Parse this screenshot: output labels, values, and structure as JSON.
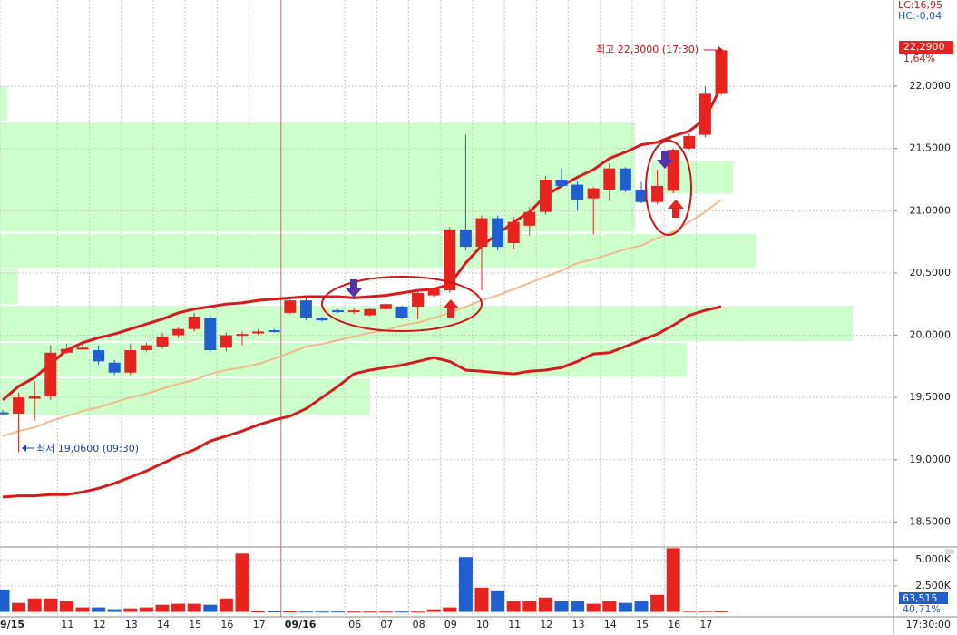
{
  "chart_data": {
    "type": "candlestick",
    "header": {
      "lc": "LC:16,95",
      "hc": "HC:-0,04"
    },
    "categories": [
      "9/15",
      null,
      null,
      null,
      "11",
      null,
      "12",
      null,
      "13",
      null,
      "14",
      null,
      "15",
      null,
      "16",
      null,
      "17",
      null,
      "09/16",
      null,
      null,
      null,
      "06",
      null,
      "07",
      null,
      "08",
      null,
      "09",
      null,
      "10",
      null,
      "11",
      null,
      "12",
      null,
      "13",
      null,
      "14",
      null,
      "15",
      null,
      "16",
      null,
      "17",
      null
    ],
    "open": [
      19.38,
      19.37,
      19.49,
      19.51,
      19.86,
      19.89,
      19.88,
      19.78,
      19.7,
      19.88,
      19.91,
      20.0,
      20.05,
      20.14,
      19.9,
      20.0,
      20.02,
      20.04,
      20.18,
      20.28,
      20.14,
      20.2,
      20.19,
      20.16,
      20.21,
      20.23,
      20.23,
      20.32,
      20.36,
      20.85,
      20.71,
      20.94,
      20.74,
      20.88,
      20.99,
      21.25,
      21.21,
      21.1,
      21.17,
      21.34,
      21.17,
      21.07,
      21.16,
      21.5,
      21.61,
      21.94
    ],
    "high": [
      19.4,
      19.54,
      19.63,
      19.92,
      19.93,
      19.94,
      19.92,
      19.8,
      19.93,
      19.94,
      20.02,
      20.06,
      20.18,
      20.16,
      20.02,
      20.03,
      20.05,
      20.05,
      20.29,
      20.3,
      20.15,
      20.21,
      20.22,
      20.22,
      20.26,
      20.24,
      20.36,
      20.38,
      20.87,
      21.61,
      20.96,
      20.96,
      20.95,
      21.03,
      21.28,
      21.34,
      21.24,
      21.19,
      21.38,
      21.35,
      21.23,
      21.33,
      21.5,
      21.62,
      22.0,
      22.3
    ],
    "low": [
      19.36,
      19.06,
      19.32,
      19.48,
      19.85,
      19.88,
      19.76,
      19.68,
      19.68,
      19.87,
      19.89,
      19.98,
      20.03,
      19.86,
      19.87,
      19.92,
      20.0,
      20.02,
      20.17,
      20.12,
      20.11,
      20.18,
      20.17,
      20.15,
      20.2,
      20.13,
      20.13,
      20.31,
      20.34,
      20.68,
      20.36,
      20.68,
      20.69,
      20.8,
      20.97,
      21.18,
      21.0,
      20.81,
      21.08,
      21.15,
      21.06,
      21.05,
      21.14,
      21.49,
      21.59,
      21.93
    ],
    "close": [
      19.37,
      19.5,
      19.51,
      19.86,
      19.89,
      19.9,
      19.79,
      19.7,
      19.88,
      19.92,
      19.99,
      20.05,
      20.15,
      19.88,
      20.0,
      20.01,
      20.03,
      20.03,
      20.28,
      20.14,
      20.12,
      20.19,
      20.2,
      20.21,
      20.25,
      20.14,
      20.34,
      20.37,
      20.85,
      20.71,
      20.94,
      20.71,
      20.91,
      20.99,
      21.25,
      21.2,
      21.09,
      21.18,
      21.34,
      21.16,
      21.07,
      21.2,
      21.49,
      21.6,
      21.94,
      22.29
    ],
    "up_color": "#e8231f",
    "down_color": "#1f5fd0",
    "lines": [
      {
        "color": "#d91a1a",
        "values": [
          19.48,
          19.59,
          19.66,
          19.77,
          19.88,
          19.94,
          19.98,
          20.01,
          20.05,
          20.09,
          20.13,
          20.18,
          20.21,
          20.23,
          20.25,
          20.26,
          20.28,
          20.29,
          20.3,
          20.31,
          20.31,
          20.31,
          20.3,
          20.31,
          20.32,
          20.34,
          20.36,
          20.37,
          20.41,
          20.58,
          20.72,
          20.81,
          20.91,
          20.99,
          21.12,
          21.2,
          21.27,
          21.33,
          21.42,
          21.47,
          21.53,
          21.55,
          21.6,
          21.64,
          21.74,
          22.0
        ]
      },
      {
        "color": "#d91a1a",
        "values": [
          18.7,
          18.71,
          18.71,
          18.72,
          18.72,
          18.74,
          18.77,
          18.81,
          18.86,
          18.91,
          18.97,
          19.03,
          19.08,
          19.15,
          19.19,
          19.23,
          19.28,
          19.32,
          19.35,
          19.41,
          19.5,
          19.59,
          19.69,
          19.72,
          19.74,
          19.76,
          19.79,
          19.82,
          19.79,
          19.72,
          19.71,
          19.7,
          19.69,
          19.71,
          19.72,
          19.74,
          19.79,
          19.85,
          19.86,
          19.91,
          19.96,
          20.01,
          20.08,
          20.16,
          20.2,
          20.23
        ]
      },
      {
        "color": "#f4b98a",
        "values": [
          19.19,
          19.23,
          19.26,
          19.31,
          19.35,
          19.39,
          19.42,
          19.46,
          19.5,
          19.53,
          19.57,
          19.61,
          19.64,
          19.69,
          19.72,
          19.74,
          19.77,
          19.81,
          19.86,
          19.91,
          19.93,
          19.96,
          19.99,
          20.02,
          20.04,
          20.08,
          20.1,
          20.14,
          20.18,
          20.23,
          20.28,
          20.32,
          20.37,
          20.42,
          20.47,
          20.52,
          20.58,
          20.61,
          20.65,
          20.69,
          20.72,
          20.78,
          20.83,
          20.91,
          20.99,
          21.09
        ]
      }
    ],
    "ylim": [
      18.306,
      22.693
    ],
    "yticks": [
      {
        "value": 18.5,
        "label": "18,5000"
      },
      {
        "value": 19,
        "label": "19,0000"
      },
      {
        "value": 19.5,
        "label": "19,5000"
      },
      {
        "value": 20,
        "label": "20,0000"
      },
      {
        "value": 20.5,
        "label": "20,5000"
      },
      {
        "value": 21,
        "label": "21,0000"
      },
      {
        "value": 21.5,
        "label": "21,5000"
      },
      {
        "value": 22,
        "label": "22,0000"
      }
    ],
    "grid": true,
    "annotations": {
      "high": "최고 22,3000 (17:30)",
      "low": "최저 19,0600 (09:30)"
    },
    "last_price": {
      "label": "22,2900",
      "change": "1,64%"
    },
    "volume": {
      "values": [
        2150,
        860,
        1290,
        1290,
        1030,
        430,
        430,
        260,
        340,
        430,
        690,
        780,
        780,
        690,
        1290,
        5600,
        50,
        50,
        50,
        30,
        30,
        30,
        30,
        30,
        30,
        30,
        30,
        250,
        430,
        5260,
        2330,
        2070,
        1030,
        1030,
        1380,
        1030,
        1030,
        780,
        1030,
        860,
        1030,
        1640,
        6120,
        80,
        80,
        60
      ],
      "ylim": [
        -300,
        6150
      ],
      "yticks": [
        {
          "value": 2500,
          "label": "2,500K"
        },
        {
          "value": 5000,
          "label": "5,000K"
        }
      ],
      "current": "63,515",
      "ratio": "40,71%"
    },
    "time": "17:30:00"
  }
}
